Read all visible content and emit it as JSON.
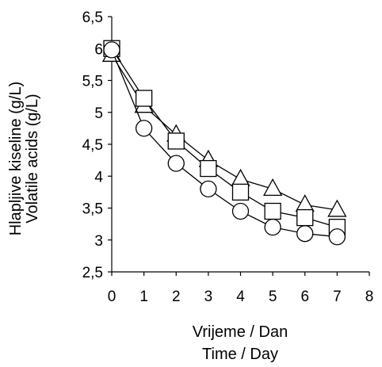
{
  "chart_data": {
    "type": "line",
    "title": "",
    "ylabel_lines": [
      "Hlapljive kiseline (g/L)",
      "Volatile acids (g/L)"
    ],
    "xlabel_lines": [
      "Vrijeme / Dan",
      "Time / Day"
    ],
    "xlim": [
      0,
      8
    ],
    "ylim": [
      2.5,
      6.5
    ],
    "x_ticks": [
      "0",
      "1",
      "2",
      "3",
      "4",
      "5",
      "6",
      "7",
      "8"
    ],
    "y_ticks": [
      "2,5",
      "3",
      "3,5",
      "4",
      "4,5",
      "5",
      "5,5",
      "6",
      "6,5"
    ],
    "x": [
      0,
      1,
      2,
      3,
      4,
      5,
      6,
      7
    ],
    "grid": false,
    "legend": "none",
    "series": [
      {
        "marker": "triangle",
        "values": [
          5.9,
          5.1,
          4.65,
          4.25,
          3.95,
          3.8,
          3.55,
          3.47
        ]
      },
      {
        "marker": "square",
        "values": [
          6.0,
          5.22,
          4.55,
          4.12,
          3.75,
          3.45,
          3.35,
          3.2
        ]
      },
      {
        "marker": "circle",
        "values": [
          5.98,
          4.75,
          4.2,
          3.8,
          3.45,
          3.2,
          3.1,
          3.05
        ]
      }
    ],
    "colors": {
      "line": "#000000",
      "marker_fill": "#ffffff"
    }
  }
}
